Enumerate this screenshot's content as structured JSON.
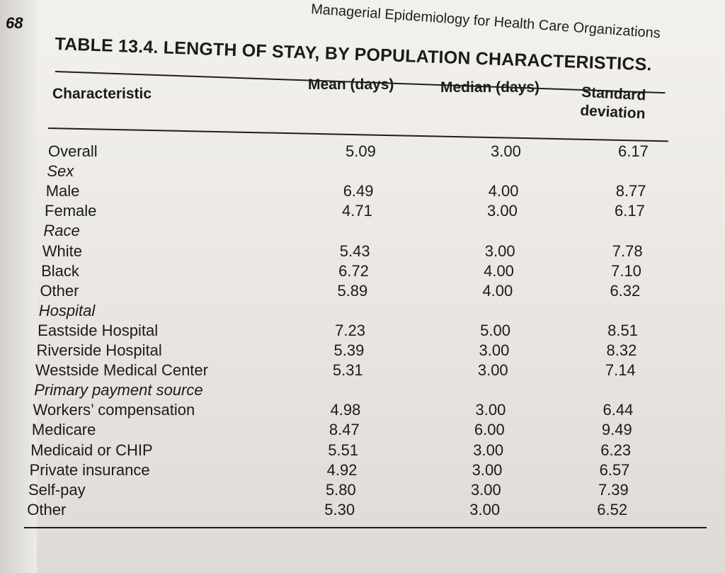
{
  "page": {
    "page_number": "68",
    "running_head": "Managerial Epidemiology for Health Care Organizations"
  },
  "table": {
    "title": "TABLE 13.4. LENGTH OF STAY, BY POPULATION CHARACTERISTICS.",
    "headers": {
      "characteristic": "Characteristic",
      "mean": "Mean (days)",
      "median": "Median (days)",
      "std_line1": "Standard",
      "std_line2": "deviation"
    },
    "rows": [
      {
        "label": "Overall",
        "section": false,
        "mean": "5.09",
        "median": "3.00",
        "std": "6.17"
      },
      {
        "label": "Sex",
        "section": true,
        "mean": "",
        "median": "",
        "std": ""
      },
      {
        "label": "Male",
        "section": false,
        "mean": "6.49",
        "median": "4.00",
        "std": "8.77"
      },
      {
        "label": "Female",
        "section": false,
        "mean": "4.71",
        "median": "3.00",
        "std": "6.17"
      },
      {
        "label": "Race",
        "section": true,
        "mean": "",
        "median": "",
        "std": ""
      },
      {
        "label": "White",
        "section": false,
        "mean": "5.43",
        "median": "3.00",
        "std": "7.78"
      },
      {
        "label": "Black",
        "section": false,
        "mean": "6.72",
        "median": "4.00",
        "std": "7.10"
      },
      {
        "label": "Other",
        "section": false,
        "mean": "5.89",
        "median": "4.00",
        "std": "6.32"
      },
      {
        "label": "Hospital",
        "section": true,
        "mean": "",
        "median": "",
        "std": ""
      },
      {
        "label": "Eastside Hospital",
        "section": false,
        "mean": "7.23",
        "median": "5.00",
        "std": "8.51"
      },
      {
        "label": "Riverside Hospital",
        "section": false,
        "mean": "5.39",
        "median": "3.00",
        "std": "8.32"
      },
      {
        "label": "Westside Medical Center",
        "section": false,
        "mean": "5.31",
        "median": "3.00",
        "std": "7.14"
      },
      {
        "label": "Primary payment source",
        "section": true,
        "mean": "",
        "median": "",
        "std": ""
      },
      {
        "label": "Workers’ compensation",
        "section": false,
        "mean": "4.98",
        "median": "3.00",
        "std": "6.44"
      },
      {
        "label": "Medicare",
        "section": false,
        "mean": "8.47",
        "median": "6.00",
        "std": "9.49"
      },
      {
        "label": "Medicaid or CHIP",
        "section": false,
        "mean": "5.51",
        "median": "3.00",
        "std": "6.23"
      },
      {
        "label": "Private insurance",
        "section": false,
        "mean": "4.92",
        "median": "3.00",
        "std": "6.57"
      },
      {
        "label": "Self-pay",
        "section": false,
        "mean": "5.80",
        "median": "3.00",
        "std": "7.39"
      },
      {
        "label": "Other",
        "section": false,
        "mean": "5.30",
        "median": "3.00",
        "std": "6.52"
      }
    ]
  }
}
